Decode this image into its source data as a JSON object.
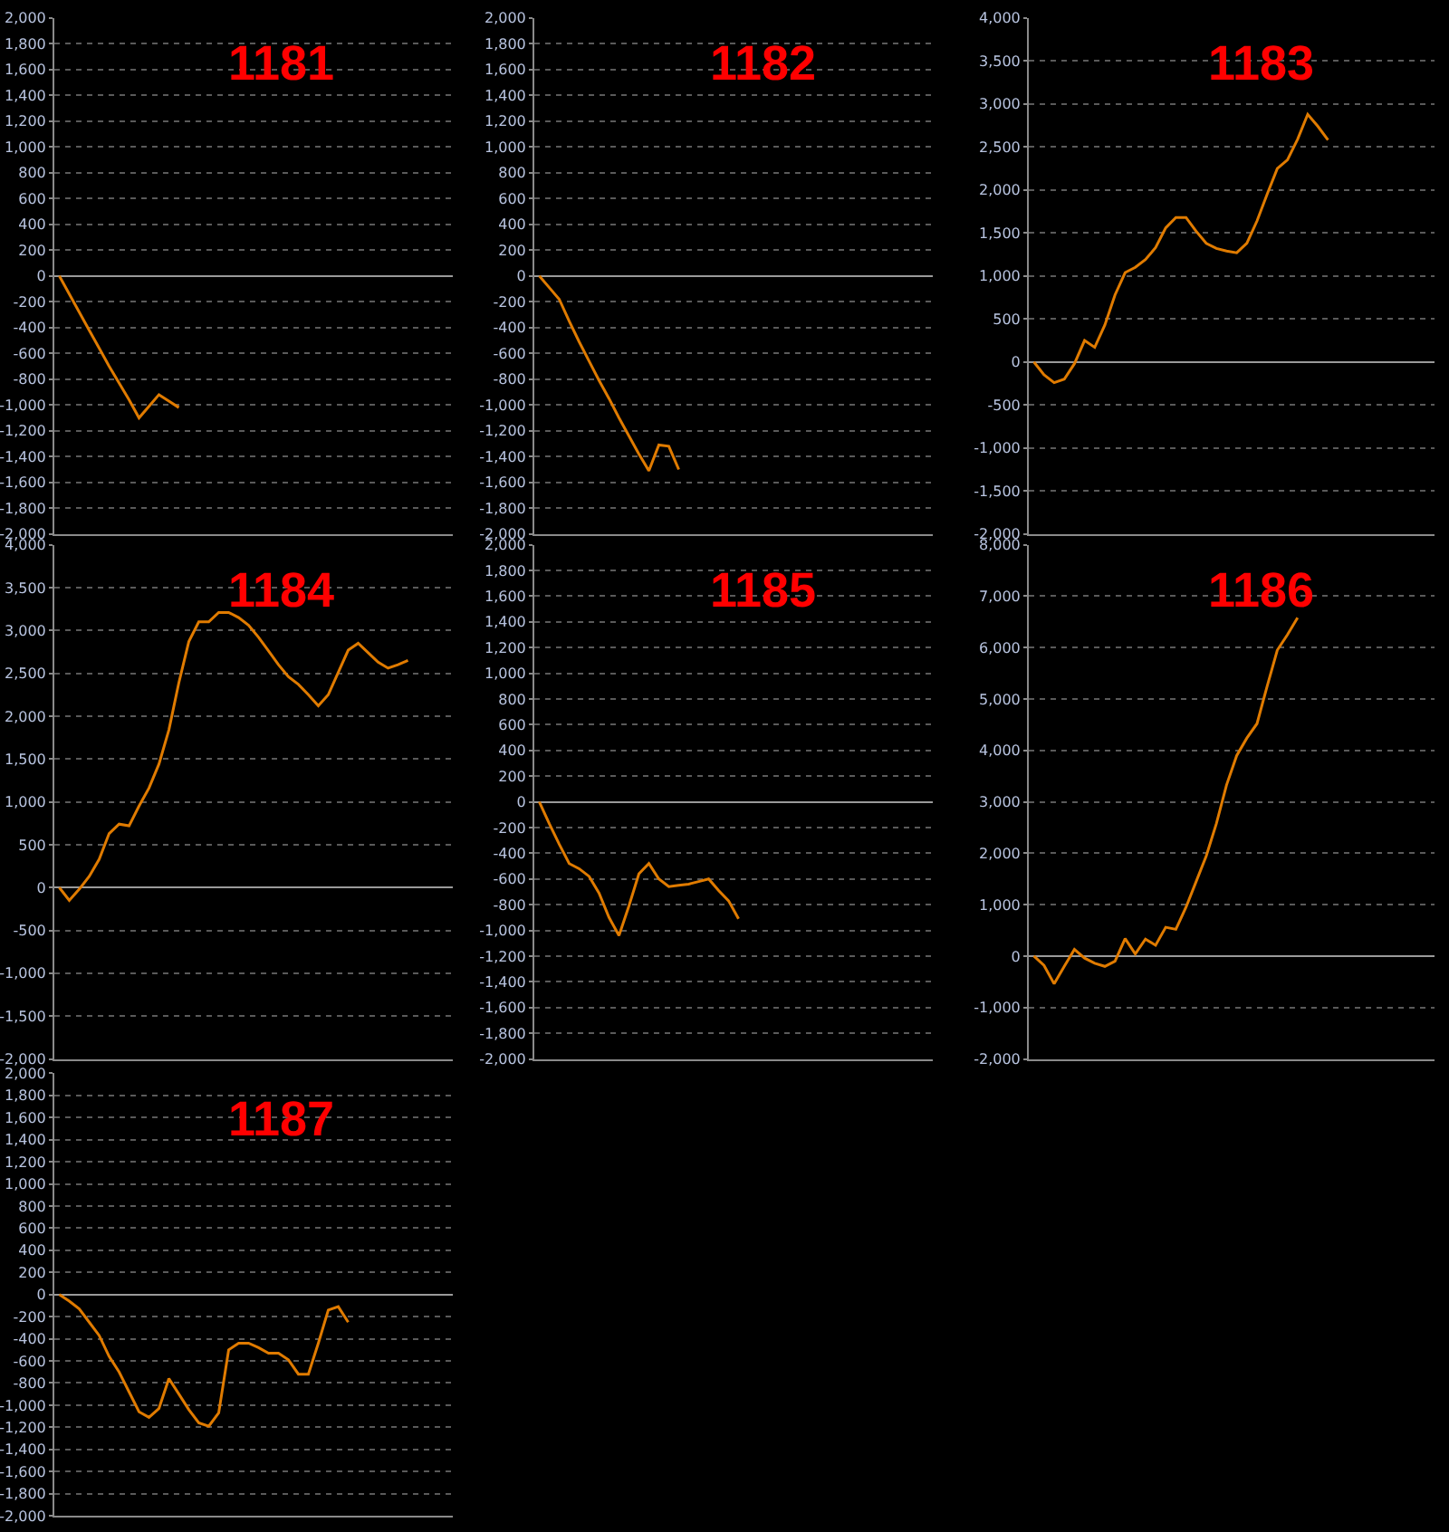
{
  "chart_data": [
    {
      "type": "line",
      "title": "1181",
      "color": "#e07b00",
      "grid": "y",
      "tick_labels": "y",
      "marker": "none",
      "categories": [
        null,
        null,
        null,
        null,
        null,
        null,
        null,
        null,
        null,
        null,
        null,
        null,
        null,
        null,
        null,
        null,
        null,
        null,
        null,
        null,
        null,
        null,
        null,
        null,
        null,
        null,
        null,
        null,
        null,
        null,
        null,
        null,
        null,
        null,
        null,
        null,
        null,
        null,
        null,
        null
      ],
      "values": [
        0,
        -140,
        -280,
        -420,
        -560,
        -700,
        -830,
        -960,
        -1100,
        -1010,
        -920,
        -970,
        -1020,
        null,
        null,
        null,
        null,
        null,
        null,
        null,
        null,
        null,
        null,
        null,
        null,
        null,
        null,
        null,
        null,
        null,
        null,
        null,
        null,
        null,
        null,
        null,
        null,
        null,
        null,
        null
      ],
      "ylim": [
        -2000,
        2000
      ],
      "yticks": [
        {
          "value": -2000,
          "label": "-2,000"
        },
        {
          "value": -1800,
          "label": "-1,800"
        },
        {
          "value": -1600,
          "label": "-1,600"
        },
        {
          "value": -1400,
          "label": "-1,400"
        },
        {
          "value": -1200,
          "label": "-1,200"
        },
        {
          "value": -1000,
          "label": "-1,000"
        },
        -800,
        -600,
        -400,
        -200,
        0,
        200,
        400,
        600,
        800,
        {
          "value": 1000,
          "label": "1,000"
        },
        {
          "value": 1200,
          "label": "1,200"
        },
        {
          "value": 1400,
          "label": "1,400"
        },
        {
          "value": 1600,
          "label": "1,600"
        },
        {
          "value": 1800,
          "label": "1,800"
        },
        {
          "value": 2000,
          "label": "2,000"
        }
      ]
    },
    {
      "type": "line",
      "title": "1182",
      "color": "#e07b00",
      "grid": "y",
      "tick_labels": "y",
      "marker": "none",
      "categories": [
        null,
        null,
        null,
        null,
        null,
        null,
        null,
        null,
        null,
        null,
        null,
        null,
        null,
        null,
        null,
        null,
        null,
        null,
        null,
        null,
        null,
        null,
        null,
        null,
        null,
        null,
        null,
        null,
        null,
        null,
        null,
        null,
        null,
        null,
        null,
        null,
        null,
        null,
        null,
        null
      ],
      "values": [
        0,
        -90,
        -180,
        -350,
        -510,
        -660,
        -810,
        -950,
        -1100,
        -1240,
        -1380,
        -1510,
        -1310,
        -1320,
        -1500,
        null,
        null,
        null,
        null,
        null,
        null,
        null,
        null,
        null,
        null,
        null,
        null,
        null,
        null,
        null,
        null,
        null,
        null,
        null,
        null,
        null,
        null,
        null,
        null,
        null
      ],
      "ylim": [
        -2000,
        2000
      ],
      "yticks": [
        {
          "value": -2000,
          "label": "-2,000"
        },
        {
          "value": -1800,
          "label": "-1,800"
        },
        {
          "value": -1600,
          "label": "-1,600"
        },
        {
          "value": -1400,
          "label": "-1,400"
        },
        {
          "value": -1200,
          "label": "-1,200"
        },
        {
          "value": -1000,
          "label": "-1,000"
        },
        -800,
        -600,
        -400,
        -200,
        0,
        200,
        400,
        600,
        800,
        {
          "value": 1000,
          "label": "1,000"
        },
        {
          "value": 1200,
          "label": "1,200"
        },
        {
          "value": 1400,
          "label": "1,400"
        },
        {
          "value": 1600,
          "label": "1,600"
        },
        {
          "value": 1800,
          "label": "1,800"
        },
        {
          "value": 2000,
          "label": "2,000"
        }
      ]
    },
    {
      "type": "line",
      "title": "1183",
      "color": "#e07b00",
      "grid": "y",
      "tick_labels": "y",
      "marker": "none",
      "categories": [
        null,
        null,
        null,
        null,
        null,
        null,
        null,
        null,
        null,
        null,
        null,
        null,
        null,
        null,
        null,
        null,
        null,
        null,
        null,
        null,
        null,
        null,
        null,
        null,
        null,
        null,
        null,
        null,
        null,
        null,
        null,
        null,
        null,
        null,
        null,
        null,
        null,
        null,
        null,
        null
      ],
      "values": [
        0,
        -150,
        -240,
        -200,
        -20,
        250,
        170,
        430,
        780,
        1040,
        1100,
        1190,
        1330,
        1560,
        1680,
        1680,
        1520,
        1380,
        1320,
        1290,
        1270,
        1380,
        1640,
        1950,
        2250,
        2350,
        2590,
        2880,
        2740,
        2580,
        null,
        null,
        null,
        null,
        null,
        null,
        null,
        null,
        null,
        null
      ],
      "ylim": [
        -2000,
        4000
      ],
      "yticks": [
        {
          "value": -2000,
          "label": "-2,000"
        },
        {
          "value": -1500,
          "label": "-1,500"
        },
        {
          "value": -1000,
          "label": "-1,000"
        },
        -500,
        0,
        500,
        {
          "value": 1000,
          "label": "1,000"
        },
        {
          "value": 1500,
          "label": "1,500"
        },
        {
          "value": 2000,
          "label": "2,000"
        },
        {
          "value": 2500,
          "label": "2,500"
        },
        {
          "value": 3000,
          "label": "3,000"
        },
        {
          "value": 3500,
          "label": "3,500"
        },
        {
          "value": 4000,
          "label": "4,000"
        }
      ]
    },
    {
      "type": "line",
      "title": "1184",
      "color": "#e07b00",
      "grid": "y",
      "tick_labels": "y",
      "marker": "none",
      "categories": [
        null,
        null,
        null,
        null,
        null,
        null,
        null,
        null,
        null,
        null,
        null,
        null,
        null,
        null,
        null,
        null,
        null,
        null,
        null,
        null,
        null,
        null,
        null,
        null,
        null,
        null,
        null,
        null,
        null,
        null,
        null,
        null,
        null,
        null,
        null,
        null,
        null,
        null,
        null,
        null
      ],
      "values": [
        0,
        -150,
        -20,
        130,
        330,
        630,
        740,
        720,
        950,
        1160,
        1440,
        1840,
        2390,
        2870,
        3100,
        3100,
        3210,
        3210,
        3150,
        3060,
        2920,
        2760,
        2600,
        2460,
        2370,
        2250,
        2120,
        2250,
        2510,
        2770,
        2850,
        2740,
        2630,
        2560,
        2600,
        2650,
        null,
        null,
        null,
        null
      ],
      "ylim": [
        -2000,
        4000
      ],
      "yticks": [
        {
          "value": -2000,
          "label": "-2,000"
        },
        {
          "value": -1500,
          "label": "-1,500"
        },
        {
          "value": -1000,
          "label": "-1,000"
        },
        -500,
        0,
        500,
        {
          "value": 1000,
          "label": "1,000"
        },
        {
          "value": 1500,
          "label": "1,500"
        },
        {
          "value": 2000,
          "label": "2,000"
        },
        {
          "value": 2500,
          "label": "2,500"
        },
        {
          "value": 3000,
          "label": "3,000"
        },
        {
          "value": 3500,
          "label": "3,500"
        },
        {
          "value": 4000,
          "label": "4,000"
        }
      ]
    },
    {
      "type": "line",
      "title": "1185",
      "color": "#e07b00",
      "grid": "y",
      "tick_labels": "y",
      "marker": "none",
      "categories": [
        null,
        null,
        null,
        null,
        null,
        null,
        null,
        null,
        null,
        null,
        null,
        null,
        null,
        null,
        null,
        null,
        null,
        null,
        null,
        null,
        null,
        null,
        null,
        null,
        null,
        null,
        null,
        null,
        null,
        null,
        null,
        null,
        null,
        null,
        null,
        null,
        null,
        null,
        null,
        null
      ],
      "values": [
        0,
        -170,
        -330,
        -480,
        -520,
        -580,
        -710,
        -900,
        -1040,
        -810,
        -560,
        -480,
        -600,
        -660,
        -650,
        -640,
        -620,
        -600,
        -690,
        -770,
        -910,
        null,
        null,
        null,
        null,
        null,
        null,
        null,
        null,
        null,
        null,
        null,
        null,
        null,
        null,
        null,
        null,
        null,
        null,
        null
      ],
      "ylim": [
        -2000,
        2000
      ],
      "yticks": [
        {
          "value": -2000,
          "label": "-2,000"
        },
        {
          "value": -1800,
          "label": "-1,800"
        },
        {
          "value": -1600,
          "label": "-1,600"
        },
        {
          "value": -1400,
          "label": "-1,400"
        },
        {
          "value": -1200,
          "label": "-1,200"
        },
        {
          "value": -1000,
          "label": "-1,000"
        },
        -800,
        -600,
        -400,
        -200,
        0,
        200,
        400,
        600,
        800,
        {
          "value": 1000,
          "label": "1,000"
        },
        {
          "value": 1200,
          "label": "1,200"
        },
        {
          "value": 1400,
          "label": "1,400"
        },
        {
          "value": 1600,
          "label": "1,600"
        },
        {
          "value": 1800,
          "label": "1,800"
        },
        {
          "value": 2000,
          "label": "2,000"
        }
      ]
    },
    {
      "type": "line",
      "title": "1186",
      "color": "#e07b00",
      "grid": "y",
      "tick_labels": "y",
      "marker": "none",
      "categories": [
        null,
        null,
        null,
        null,
        null,
        null,
        null,
        null,
        null,
        null,
        null,
        null,
        null,
        null,
        null,
        null,
        null,
        null,
        null,
        null,
        null,
        null,
        null,
        null,
        null,
        null,
        null,
        null,
        null,
        null,
        null,
        null,
        null,
        null,
        null,
        null,
        null,
        null,
        null,
        null
      ],
      "values": [
        0,
        -180,
        -540,
        -200,
        130,
        -40,
        -140,
        -200,
        -100,
        340,
        40,
        330,
        210,
        560,
        520,
        950,
        1450,
        1950,
        2580,
        3330,
        3900,
        4240,
        4520,
        5250,
        5950,
        6250,
        6580,
        null,
        null,
        null,
        null,
        null,
        null,
        null,
        null,
        null,
        null,
        null,
        null,
        null
      ],
      "ylim": [
        -2000,
        8000
      ],
      "yticks": [
        {
          "value": -2000,
          "label": "-2,000"
        },
        {
          "value": -1000,
          "label": "-1,000"
        },
        0,
        {
          "value": 1000,
          "label": "1,000"
        },
        {
          "value": 2000,
          "label": "2,000"
        },
        {
          "value": 3000,
          "label": "3,000"
        },
        {
          "value": 4000,
          "label": "4,000"
        },
        {
          "value": 5000,
          "label": "5,000"
        },
        {
          "value": 6000,
          "label": "6,000"
        },
        {
          "value": 7000,
          "label": "7,000"
        },
        {
          "value": 8000,
          "label": "8,000"
        }
      ]
    },
    {
      "type": "line",
      "title": "1187",
      "color": "#e07b00",
      "grid": "y",
      "tick_labels": "y",
      "marker": "none",
      "categories": [
        null,
        null,
        null,
        null,
        null,
        null,
        null,
        null,
        null,
        null,
        null,
        null,
        null,
        null,
        null,
        null,
        null,
        null,
        null,
        null,
        null,
        null,
        null,
        null,
        null,
        null,
        null,
        null,
        null,
        null,
        null,
        null,
        null,
        null,
        null,
        null,
        null,
        null,
        null,
        null
      ],
      "values": [
        0,
        -60,
        -130,
        -250,
        -370,
        -560,
        -700,
        -880,
        -1060,
        -1110,
        -1030,
        -760,
        -900,
        -1040,
        -1160,
        -1190,
        -1070,
        -500,
        -440,
        -440,
        -480,
        -530,
        -530,
        -590,
        -720,
        -720,
        -440,
        -140,
        -110,
        -250,
        null,
        null,
        null,
        null,
        null,
        null,
        null,
        null,
        null,
        null
      ],
      "ylim": [
        -2000,
        2000
      ],
      "yticks": [
        {
          "value": -2000,
          "label": "-2,000"
        },
        {
          "value": -1800,
          "label": "-1,800"
        },
        {
          "value": -1600,
          "label": "-1,600"
        },
        {
          "value": -1400,
          "label": "-1,400"
        },
        {
          "value": -1200,
          "label": "-1,200"
        },
        {
          "value": -1000,
          "label": "-1,000"
        },
        -800,
        -600,
        -400,
        -200,
        0,
        200,
        400,
        600,
        800,
        {
          "value": 1000,
          "label": "1,000"
        },
        {
          "value": 1200,
          "label": "1,200"
        },
        {
          "value": 1400,
          "label": "1,400"
        },
        {
          "value": 1600,
          "label": "1,600"
        },
        {
          "value": 1800,
          "label": "1,800"
        },
        {
          "value": 2000,
          "label": "2,000"
        }
      ]
    }
  ]
}
